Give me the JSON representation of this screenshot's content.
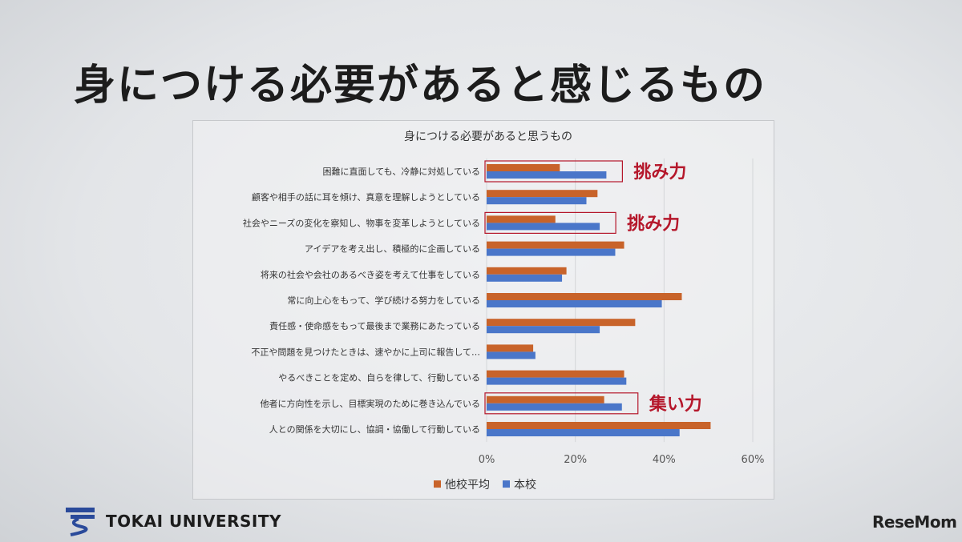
{
  "slide": {
    "title": "身につける必要があると感じるもの",
    "logo_text": "TOKAI UNIVERSITY",
    "watermark": "ReseMom"
  },
  "colors": {
    "series_other": "#c8632a",
    "series_ours": "#4a76c9",
    "highlight": "#b5172b"
  },
  "annotations": [
    {
      "text": "挑み力",
      "category_index": 0
    },
    {
      "text": "挑み力",
      "category_index": 2
    },
    {
      "text": "集い力",
      "category_index": 9
    }
  ],
  "chart_data": {
    "type": "bar",
    "orientation": "horizontal",
    "title": "身につける必要があると思うもの",
    "categories": [
      "困難に直面しても、冷静に対処している",
      "顧客や相手の話に耳を傾け、真意を理解しようとしている",
      "社会やニーズの変化を察知し、物事を変革しようとしている",
      "アイデアを考え出し、積極的に企画している",
      "将来の社会や会社のあるべき姿を考えて仕事をしている",
      "常に向上心をもって、学び続ける努力をしている",
      "責任感・使命感をもって最後まで業務にあたっている",
      "不正や問題を見つけたときは、速やかに上司に報告して…",
      "やるべきことを定め、自らを律して、行動している",
      "他者に方向性を示し、目標実現のために巻き込んでいる",
      "人との関係を大切にし、協調・協働して行動している"
    ],
    "series": [
      {
        "name": "他校平均",
        "values": [
          16.5,
          25,
          15.5,
          31,
          18,
          44,
          33.5,
          10.5,
          31,
          26.5,
          50.5
        ]
      },
      {
        "name": "本校",
        "values": [
          27,
          22.5,
          25.5,
          29,
          17,
          39.5,
          25.5,
          11,
          31.5,
          30.5,
          43.5
        ]
      }
    ],
    "xlim": [
      0,
      60
    ],
    "xticks": [
      0,
      20,
      40,
      60
    ],
    "tick_format": "{v}%",
    "legend_position": "bottom",
    "grid": true
  }
}
